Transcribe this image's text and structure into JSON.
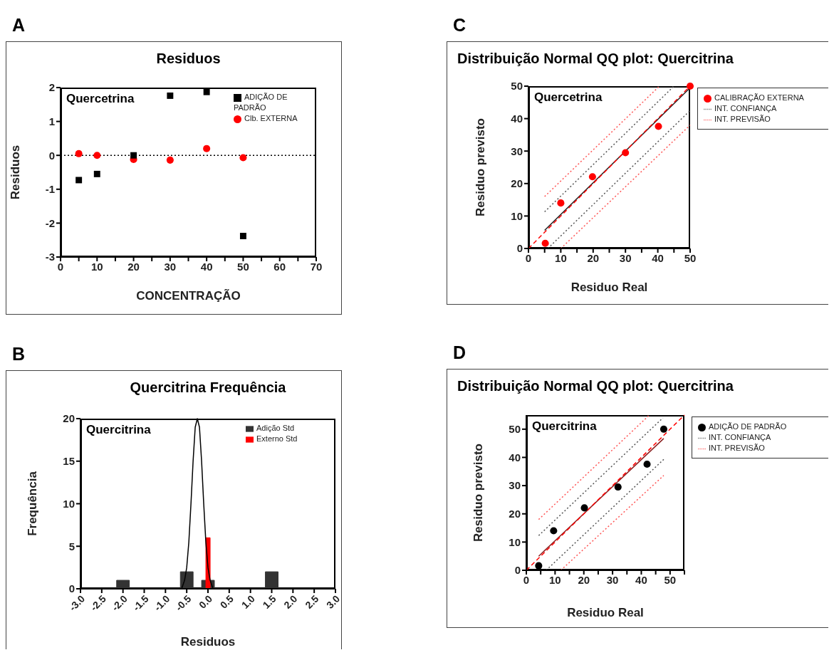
{
  "chart_data": [
    {
      "type": "scatter",
      "title": "Residuos",
      "xlabel": "CONCENTRAÇÃO",
      "ylabel": "Residuos",
      "annotations": [
        "A",
        "Quercetrina"
      ],
      "xlim": [
        0,
        70
      ],
      "xticks": [
        0,
        {
          "value": 5,
          "label": null
        },
        10,
        {
          "value": 15,
          "label": null
        },
        20,
        {
          "value": 25,
          "label": null
        },
        30,
        {
          "value": 35,
          "label": null
        },
        40,
        {
          "value": 45,
          "label": null
        },
        50,
        {
          "value": 55,
          "label": null
        },
        60,
        {
          "value": 65,
          "label": null
        },
        70
      ],
      "ylim": [
        -3,
        2
      ],
      "yticks": [
        -3,
        -2,
        -1,
        0,
        1,
        2
      ],
      "legend": "top right",
      "ref_lines": [
        {
          "axis": "y",
          "value": 0,
          "color": "#000000",
          "line_style": "dotted"
        }
      ],
      "series": [
        {
          "name": "Clb. EXTERNA",
          "color": "#ff0000",
          "marker": "circle",
          "x": [
            5,
            10,
            20,
            30,
            40,
            50
          ],
          "values": [
            0.05,
            0.0,
            -0.12,
            -0.14,
            0.2,
            -0.07
          ]
        },
        {
          "name": "ADIÇÃO DE PADRÃO",
          "color": "#000000",
          "marker": "square",
          "x": [
            5,
            10,
            20,
            30,
            40,
            50
          ],
          "values": [
            -0.73,
            -0.55,
            0.0,
            1.76,
            1.87,
            -2.38
          ]
        }
      ]
    },
    {
      "type": "bar",
      "title": "Quercitrina Frequência",
      "xlabel": "Residuos",
      "ylabel": "Frequência",
      "annotations": [
        "B",
        "Quercitrina"
      ],
      "x": [
        -3,
        -2.5,
        -2,
        -1.5,
        -1,
        -0.5,
        0,
        0.5,
        1,
        1.5,
        2,
        2.5,
        3
      ],
      "xlim": [
        -3,
        3
      ],
      "xticks": [
        {
          "value": -3,
          "label": "-3.0"
        },
        {
          "value": -2.5,
          "label": "-2.5"
        },
        {
          "value": -2,
          "label": "-2.0"
        },
        {
          "value": -1.5,
          "label": "-1.5"
        },
        {
          "value": -1,
          "label": "-1.0"
        },
        {
          "value": -0.5,
          "label": "-0.5"
        },
        {
          "value": 0,
          "label": "0.0"
        },
        {
          "value": 0.5,
          "label": "0.5"
        },
        {
          "value": 1,
          "label": "1.0"
        },
        {
          "value": 1.5,
          "label": "1.5"
        },
        {
          "value": 2,
          "label": "2.0"
        },
        {
          "value": 2.5,
          "label": "2.5"
        },
        {
          "value": 3,
          "label": "3.0"
        }
      ],
      "ylim": [
        0,
        20
      ],
      "yticks": [
        0,
        5,
        10,
        15,
        20
      ],
      "legend": "top right",
      "series": [
        {
          "name": "Adição Std",
          "color": "#333333",
          "values": [
            0,
            0,
            1,
            0,
            0,
            2,
            1,
            0,
            0,
            2,
            0,
            0,
            0
          ]
        },
        {
          "name": "Externo Std",
          "color": "#ff0000",
          "values": [
            0,
            0,
            0,
            0,
            0,
            0,
            6,
            0,
            0,
            0,
            0,
            0,
            0
          ]
        },
        {
          "type": "line",
          "color": "#000000",
          "x": [
            -3,
            -0.62,
            -0.55,
            -0.5,
            -0.45,
            -0.4,
            -0.35,
            -0.3,
            -0.25,
            -0.2,
            -0.15,
            -0.1,
            -0.05,
            0,
            0.05,
            0.12,
            3
          ],
          "values": [
            0,
            0,
            1,
            2.5,
            5.5,
            10,
            15,
            19,
            20,
            19,
            15,
            10,
            5.5,
            2.5,
            1,
            0,
            0
          ]
        }
      ]
    },
    {
      "type": "scatter",
      "title": "Distribuição Normal QQ plot: Quercitrina",
      "xlabel": "Residuo Real",
      "ylabel": "Residuo previsto",
      "annotations": [
        "C",
        "Quercetrina"
      ],
      "xlim": [
        0,
        50
      ],
      "xticks": [
        0,
        {
          "value": 5,
          "label": null
        },
        10,
        {
          "value": 15,
          "label": null
        },
        20,
        {
          "value": 25,
          "label": null
        },
        30,
        {
          "value": 35,
          "label": null
        },
        40,
        {
          "value": 45,
          "label": null
        },
        50
      ],
      "ylim": [
        0,
        50
      ],
      "yticks": [
        0,
        10,
        20,
        30,
        40,
        50
      ],
      "legend": "right",
      "series": [
        {
          "name": "CALIBRAÇÃO EXTERNA",
          "color": "#ff0000",
          "marker": "circle",
          "x": [
            5.2,
            10,
            19.8,
            30,
            40.2,
            50
          ],
          "values": [
            1.6,
            14,
            22.1,
            29.5,
            37.6,
            50
          ]
        },
        {
          "name": "INT. CONFIANÇA",
          "type": "line",
          "color": "#555555",
          "line_style": "dotted",
          "x": [
            5,
            45
          ],
          "values": [
            11.3,
            50
          ]
        },
        {
          "type": "line",
          "color": "#555555",
          "line_style": "dotted",
          "x": [
            6,
            50
          ],
          "values": [
            0,
            42.5
          ]
        },
        {
          "name": "INT. PREVISÃO",
          "type": "line",
          "color": "#ff5555",
          "line_style": "dotted",
          "x": [
            5,
            40.5
          ],
          "values": [
            16,
            50
          ]
        },
        {
          "type": "line",
          "color": "#ff5555",
          "line_style": "dotted",
          "x": [
            10,
            50
          ],
          "values": [
            0,
            38
          ]
        },
        {
          "type": "line",
          "color": "#222222",
          "line_style": "solid",
          "x": [
            5,
            50
          ],
          "values": [
            5.6,
            49.5
          ]
        },
        {
          "type": "line",
          "color": "#ff0000",
          "line_style": "dashed",
          "x": [
            0,
            50
          ],
          "values": [
            0,
            50
          ]
        }
      ]
    },
    {
      "type": "scatter",
      "title": "Distribuição Normal QQ plot: Quercitrina",
      "xlabel": "Residuo Real",
      "ylabel": "Residuo previsto",
      "annotations": [
        "D",
        "Quercitrina"
      ],
      "xlim": [
        0,
        55
      ],
      "xticks": [
        0,
        {
          "value": 5,
          "label": null
        },
        10,
        {
          "value": 15,
          "label": null
        },
        20,
        {
          "value": 25,
          "label": null
        },
        30,
        {
          "value": 35,
          "label": null
        },
        40,
        {
          "value": 45,
          "label": null
        },
        50,
        {
          "value": 55,
          "label": null
        }
      ],
      "ylim": [
        0,
        55
      ],
      "yticks": [
        0,
        10,
        20,
        30,
        40,
        50
      ],
      "legend": "right",
      "series": [
        {
          "name": "ADIÇÃO DE PADRÃO",
          "color": "#000000",
          "marker": "circle",
          "x": [
            4.3,
            9.5,
            20.2,
            31.9,
            42,
            47.8
          ],
          "values": [
            1.6,
            14,
            22.1,
            29.5,
            37.6,
            50
          ]
        },
        {
          "name": "INT. CONFIANÇA",
          "type": "line",
          "color": "#555555",
          "line_style": "dotted",
          "x": [
            4.3,
            47.5
          ],
          "values": [
            12.3,
            54
          ]
        },
        {
          "type": "line",
          "color": "#555555",
          "line_style": "dotted",
          "x": [
            6.9,
            47.8
          ],
          "values": [
            0,
            39.3
          ]
        },
        {
          "name": "INT. PREVISÃO",
          "type": "line",
          "color": "#ff5555",
          "line_style": "dotted",
          "x": [
            4.3,
            42.8
          ],
          "values": [
            18,
            55
          ]
        },
        {
          "type": "line",
          "color": "#ff5555",
          "line_style": "dotted",
          "x": [
            12,
            47.8
          ],
          "values": [
            0,
            33.6
          ]
        },
        {
          "type": "line",
          "color": "#8b2020",
          "line_style": "solid",
          "x": [
            4.3,
            47.8
          ],
          "values": [
            5,
            46.7
          ]
        },
        {
          "type": "line",
          "color": "#ff0000",
          "line_style": "dashed",
          "x": [
            0,
            55
          ],
          "values": [
            0,
            55
          ]
        }
      ]
    }
  ]
}
